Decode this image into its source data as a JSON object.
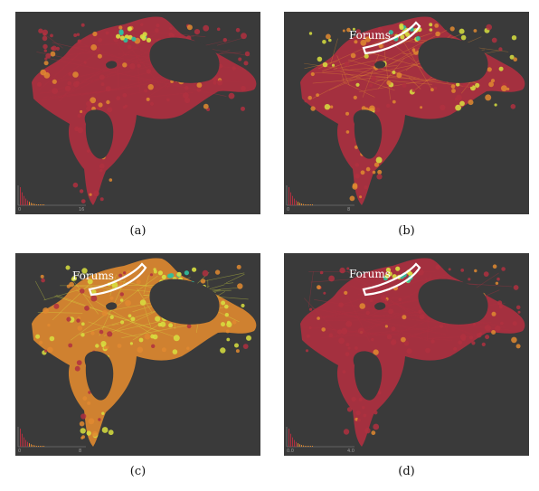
{
  "figure": {
    "panels": [
      {
        "id": "a",
        "caption": "(a)",
        "hist_min": "0",
        "hist_max": "16",
        "annotation": "",
        "palette": "red",
        "hotspot": "top"
      },
      {
        "id": "b",
        "caption": "(b)",
        "hist_min": "0",
        "hist_max": "8",
        "annotation": "Forums",
        "palette": "orange",
        "hotspot": "forums"
      },
      {
        "id": "c",
        "caption": "(c)",
        "hist_min": "0",
        "hist_max": "8",
        "annotation": "Forums",
        "palette": "yellow",
        "hotspot": "right"
      },
      {
        "id": "d",
        "caption": "(d)",
        "hist_min": "0.0",
        "hist_max": "4.0",
        "annotation": "Forums",
        "palette": "red",
        "hotspot": "forums"
      }
    ],
    "colors": {
      "background": "#3a3a3a",
      "low": "#b03040",
      "mid": "#e08a30",
      "high": "#d8e040",
      "top": "#30c0a0",
      "outline": "#ffffff"
    }
  }
}
